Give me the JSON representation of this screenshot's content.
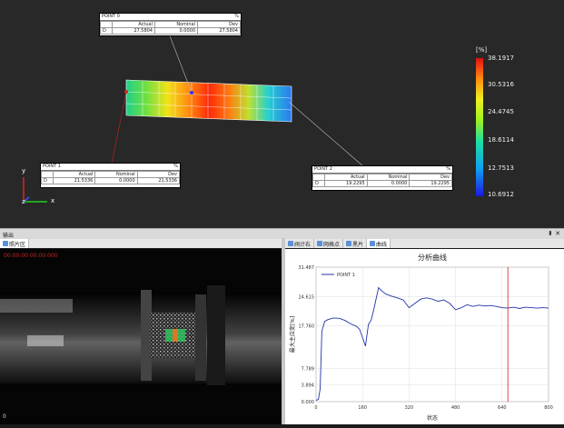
{
  "colorbar": {
    "unit": "[%]",
    "labels": [
      "38.1917",
      "30.5316",
      "24.4745",
      "18.6114",
      "12.7513",
      "10.6912"
    ]
  },
  "callouts": [
    {
      "title": "POINT 0",
      "pct": "%",
      "headers": [
        "Actual",
        "Nominal",
        "Dev"
      ],
      "row": {
        "axis": "D",
        "actual": "27.5804",
        "nominal": "0.0000",
        "dev": "27.5804"
      }
    },
    {
      "title": "POINT 1",
      "pct": "%",
      "headers": [
        "Actual",
        "Nominal",
        "Dev"
      ],
      "row": {
        "axis": "D",
        "actual": "21.5336",
        "nominal": "0.0000",
        "dev": "21.5336"
      }
    },
    {
      "title": "POINT 2",
      "pct": "%",
      "headers": [
        "Actual",
        "Nominal",
        "Dev"
      ],
      "row": {
        "axis": "D",
        "actual": "19.2295",
        "nominal": "0.0000",
        "dev": "19.2295"
      }
    }
  ],
  "axes": {
    "y": "y",
    "x": "x",
    "z": "z"
  },
  "output_panel": {
    "title": "输出"
  },
  "left_tabs": [
    {
      "label": "照片区"
    }
  ],
  "right_tabs": [
    {
      "label": "阀计右"
    },
    {
      "label": "网格点"
    },
    {
      "label": "黑片"
    },
    {
      "label": "曲线"
    }
  ],
  "camera": {
    "overlay": "00:00:00 00:00:000",
    "corner": "0"
  },
  "colors": {
    "viewport_bg": "#282828",
    "chart_line": "#2233aa",
    "cursor": "#cc2222"
  },
  "chart_data": {
    "type": "line",
    "title": "分析曲线",
    "xlabel": "状态",
    "ylabel": "最大主应变[%]",
    "x_ticks": [
      0,
      160,
      320,
      480,
      640,
      800
    ],
    "y_ticks": [
      0.0,
      3.894,
      7.789,
      17.76,
      24.615,
      31.487
    ],
    "y_tick_labels": [
      "0.000",
      "3.894",
      "7.789",
      "17.760",
      "24.615",
      "31.487"
    ],
    "xlim": [
      0,
      800
    ],
    "ylim": [
      0,
      31.487
    ],
    "legend": "top-left",
    "grid": true,
    "series": [
      {
        "name": "POINT 1",
        "x": [
          0,
          8,
          14,
          20,
          30,
          40,
          60,
          80,
          100,
          120,
          140,
          150,
          160,
          170,
          180,
          190,
          200,
          215,
          225,
          240,
          260,
          280,
          300,
          320,
          340,
          360,
          380,
          400,
          420,
          440,
          460,
          480,
          500,
          520,
          540,
          560,
          580,
          600,
          620,
          640,
          660,
          680,
          700,
          720,
          740,
          760,
          780,
          800
        ],
        "y": [
          0.3,
          0.5,
          3.0,
          16.5,
          18.8,
          19.2,
          19.6,
          19.5,
          19.0,
          18.2,
          17.6,
          16.9,
          15.0,
          13.0,
          18.0,
          19.2,
          22.0,
          26.7,
          26.0,
          25.2,
          24.7,
          24.3,
          23.8,
          22.0,
          23.0,
          24.0,
          24.3,
          24.0,
          23.5,
          23.8,
          23.0,
          21.5,
          22.0,
          22.7,
          22.3,
          22.6,
          22.4,
          22.5,
          22.3,
          22.0,
          21.9,
          22.1,
          21.8,
          22.1,
          22.0,
          21.9,
          22.0,
          21.9
        ]
      }
    ],
    "cursor_x": 660
  }
}
